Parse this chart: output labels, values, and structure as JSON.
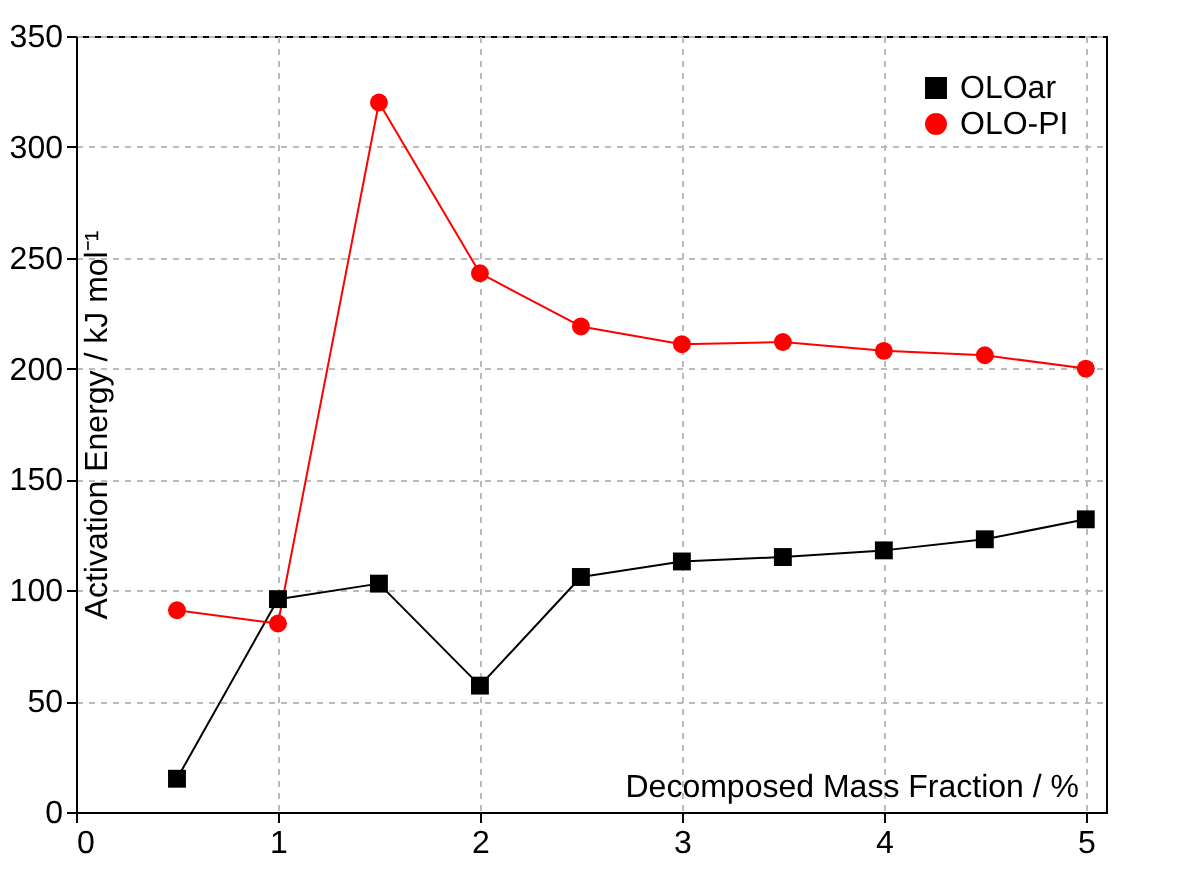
{
  "chart_data": {
    "type": "line",
    "xlabel": "Decomposed Mass Fraction / %",
    "ylabel": "Activation Energy / kJ mol⁻¹",
    "x": [
      0.5,
      1,
      1.5,
      2,
      2.5,
      3,
      3.5,
      4,
      4.5,
      5
    ],
    "series": [
      {
        "name": "OLOar",
        "color": "#000000",
        "marker": "square",
        "values": [
          15,
          96,
          103,
          57,
          106,
          113,
          115,
          118,
          123,
          132
        ]
      },
      {
        "name": "OLO-PI",
        "color": "#ff0000",
        "marker": "circle",
        "values": [
          91,
          85,
          320,
          243,
          219,
          211,
          212,
          208,
          206,
          200
        ]
      }
    ],
    "xlim": [
      0,
      5.1
    ],
    "xticks": [
      0,
      1,
      2,
      3,
      4,
      5
    ],
    "ylim": [
      0,
      350
    ],
    "yticks": [
      0,
      50,
      100,
      150,
      200,
      250,
      300,
      350
    ],
    "grid": true,
    "legend": "top right",
    "line_style": "solid"
  }
}
